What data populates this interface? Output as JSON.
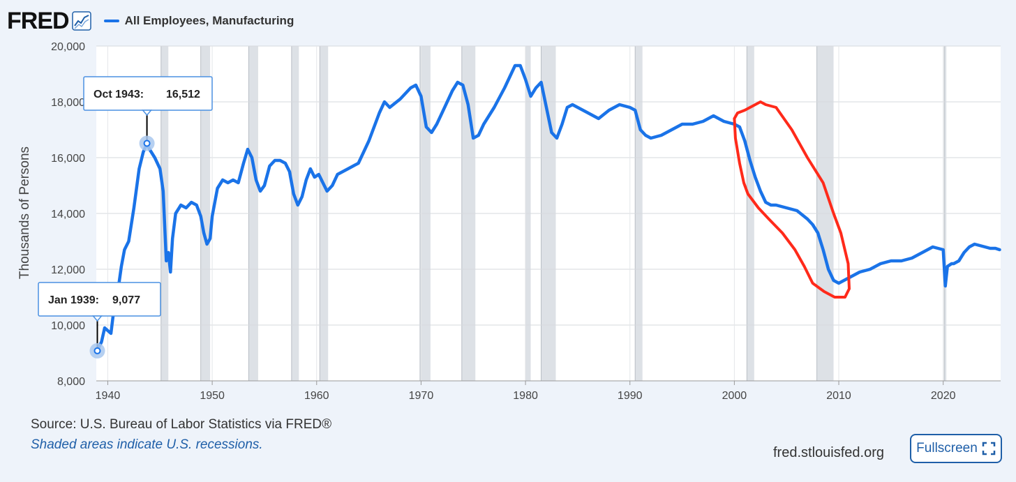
{
  "header": {
    "logo": "FRED",
    "logo_icon": "chart-line-icon",
    "legend_label": "All Employees, Manufacturing"
  },
  "footer": {
    "source": "Source: U.S. Bureau of Labor Statistics via FRED®",
    "note": "Shaded areas indicate U.S. recessions.",
    "url": "fred.stlouisfed.org",
    "fullscreen_label": "Fullscreen",
    "fullscreen_icon": "expand-icon"
  },
  "tooltips": [
    {
      "date_label": "Oct 1943:",
      "value_label": "16,512",
      "x": 1943.75,
      "y": 16512
    },
    {
      "date_label": "Jan 1939:",
      "value_label": "9,077",
      "x": 1939.0,
      "y": 9077
    }
  ],
  "chart_data": {
    "type": "line",
    "title": "",
    "xlabel": "",
    "ylabel": "Thousands of Persons",
    "xlim": [
      1938.9,
      2025.5
    ],
    "ylim": [
      8000,
      20000
    ],
    "x_ticks": [
      1940,
      1950,
      1960,
      1970,
      1980,
      1990,
      2000,
      2010,
      2020
    ],
    "x_tick_labels": [
      "1940",
      "1950",
      "1960",
      "1970",
      "1980",
      "1990",
      "2000",
      "2010",
      "2020"
    ],
    "y_ticks": [
      8000,
      10000,
      12000,
      14000,
      16000,
      18000,
      20000
    ],
    "y_tick_labels": [
      "8,000",
      "10,000",
      "12,000",
      "14,000",
      "16,000",
      "18,000",
      "20,000"
    ],
    "grid": true,
    "legend_position": "top-left",
    "line_color": "#1a73e8",
    "recession_color": "#dde1e6",
    "annotation_color": "#ff2a1a",
    "recessions": [
      [
        1945.1,
        1945.8
      ],
      [
        1948.9,
        1949.8
      ],
      [
        1953.5,
        1954.4
      ],
      [
        1957.6,
        1958.3
      ],
      [
        1960.3,
        1961.1
      ],
      [
        1969.9,
        1970.9
      ],
      [
        1973.9,
        1975.2
      ],
      [
        1980.0,
        1980.5
      ],
      [
        1981.5,
        1982.9
      ],
      [
        1990.5,
        1991.2
      ],
      [
        2001.2,
        2001.9
      ],
      [
        2007.9,
        2009.5
      ],
      [
        2020.1,
        2020.3
      ]
    ],
    "series": [
      {
        "name": "All Employees, Manufacturing",
        "x": [
          1939.0,
          1939.4,
          1939.7,
          1940.0,
          1940.3,
          1940.6,
          1941.0,
          1941.3,
          1941.6,
          1942.0,
          1942.5,
          1943.0,
          1943.4,
          1943.75,
          1944.0,
          1944.5,
          1945.0,
          1945.3,
          1945.6,
          1945.8,
          1946.0,
          1946.2,
          1946.5,
          1947.0,
          1947.5,
          1948.0,
          1948.5,
          1948.9,
          1949.2,
          1949.5,
          1949.8,
          1950.0,
          1950.5,
          1951.0,
          1951.5,
          1952.0,
          1952.5,
          1953.0,
          1953.4,
          1953.8,
          1954.2,
          1954.6,
          1955.0,
          1955.5,
          1956.0,
          1956.5,
          1957.0,
          1957.4,
          1957.8,
          1958.2,
          1958.6,
          1959.0,
          1959.4,
          1959.8,
          1960.2,
          1960.6,
          1961.0,
          1961.5,
          1962.0,
          1963.0,
          1964.0,
          1965.0,
          1966.0,
          1966.5,
          1967.0,
          1968.0,
          1969.0,
          1969.5,
          1970.0,
          1970.5,
          1971.0,
          1971.5,
          1972.0,
          1973.0,
          1973.5,
          1974.0,
          1974.5,
          1975.0,
          1975.5,
          1976.0,
          1977.0,
          1978.0,
          1979.0,
          1979.5,
          1980.0,
          1980.5,
          1981.0,
          1981.5,
          1982.0,
          1982.5,
          1983.0,
          1983.5,
          1984.0,
          1984.5,
          1985.0,
          1986.0,
          1987.0,
          1988.0,
          1989.0,
          1990.0,
          1990.5,
          1991.0,
          1991.5,
          1992.0,
          1993.0,
          1994.0,
          1995.0,
          1996.0,
          1997.0,
          1998.0,
          1998.5,
          1999.0,
          2000.0,
          2000.5,
          2001.0,
          2001.5,
          2002.0,
          2002.5,
          2003.0,
          2003.5,
          2004.0,
          2005.0,
          2006.0,
          2007.0,
          2007.5,
          2008.0,
          2008.5,
          2009.0,
          2009.5,
          2010.0,
          2011.0,
          2012.0,
          2013.0,
          2014.0,
          2015.0,
          2016.0,
          2017.0,
          2018.0,
          2019.0,
          2020.0,
          2020.2,
          2020.4,
          2020.8,
          2021.0,
          2021.5,
          2022.0,
          2022.5,
          2023.0,
          2023.5,
          2024.0,
          2024.5,
          2025.0,
          2025.4
        ],
        "values": [
          9077,
          9400,
          9900,
          9800,
          9700,
          10600,
          11300,
          12100,
          12700,
          13000,
          14200,
          15600,
          16200,
          16512,
          16300,
          16000,
          15600,
          14800,
          12300,
          12600,
          11900,
          13100,
          14000,
          14300,
          14200,
          14400,
          14300,
          13900,
          13300,
          12900,
          13100,
          13900,
          14900,
          15200,
          15100,
          15200,
          15100,
          15800,
          16300,
          16000,
          15200,
          14800,
          15000,
          15700,
          15900,
          15900,
          15800,
          15500,
          14700,
          14300,
          14600,
          15200,
          15600,
          15300,
          15400,
          15100,
          14800,
          15000,
          15400,
          15600,
          15800,
          16600,
          17600,
          18000,
          17800,
          18100,
          18500,
          18600,
          18200,
          17100,
          16900,
          17200,
          17600,
          18400,
          18700,
          18600,
          17900,
          16700,
          16800,
          17200,
          17800,
          18500,
          19300,
          19300,
          18800,
          18200,
          18500,
          18700,
          17800,
          16900,
          16700,
          17200,
          17800,
          17900,
          17800,
          17600,
          17400,
          17700,
          17900,
          17800,
          17700,
          17000,
          16800,
          16700,
          16800,
          17000,
          17200,
          17200,
          17300,
          17500,
          17400,
          17300,
          17200,
          17100,
          16600,
          15900,
          15300,
          14800,
          14400,
          14300,
          14300,
          14200,
          14100,
          13800,
          13600,
          13300,
          12700,
          12000,
          11600,
          11500,
          11700,
          11900,
          12000,
          12200,
          12300,
          12300,
          12400,
          12600,
          12800,
          12700,
          11400,
          12100,
          12200,
          12200,
          12300,
          12600,
          12800,
          12900,
          12850,
          12800,
          12750,
          12750,
          12700
        ]
      }
    ],
    "annotation": {
      "type": "freehand-ellipse",
      "x": [
        2000.0,
        2000.3,
        2001.0,
        2001.5,
        2002.0,
        2002.5,
        2003.0,
        2004.0,
        2005.5,
        2007.0,
        2008.5,
        2009.5,
        2010.2,
        2010.9,
        2011.0,
        2010.6,
        2009.6,
        2008.6,
        2007.5,
        2006.7,
        2005.8,
        2004.6,
        2003.3,
        2002.3,
        2001.3,
        2000.9,
        2000.5,
        2000.1,
        2000.0
      ],
      "values": [
        17400,
        17600,
        17700,
        17800,
        17900,
        18000,
        17900,
        17800,
        17000,
        16000,
        15100,
        14000,
        13300,
        12200,
        11300,
        11000,
        11000,
        11200,
        11500,
        12100,
        12700,
        13300,
        13800,
        14200,
        14700,
        15100,
        15800,
        16700,
        17400
      ]
    }
  }
}
